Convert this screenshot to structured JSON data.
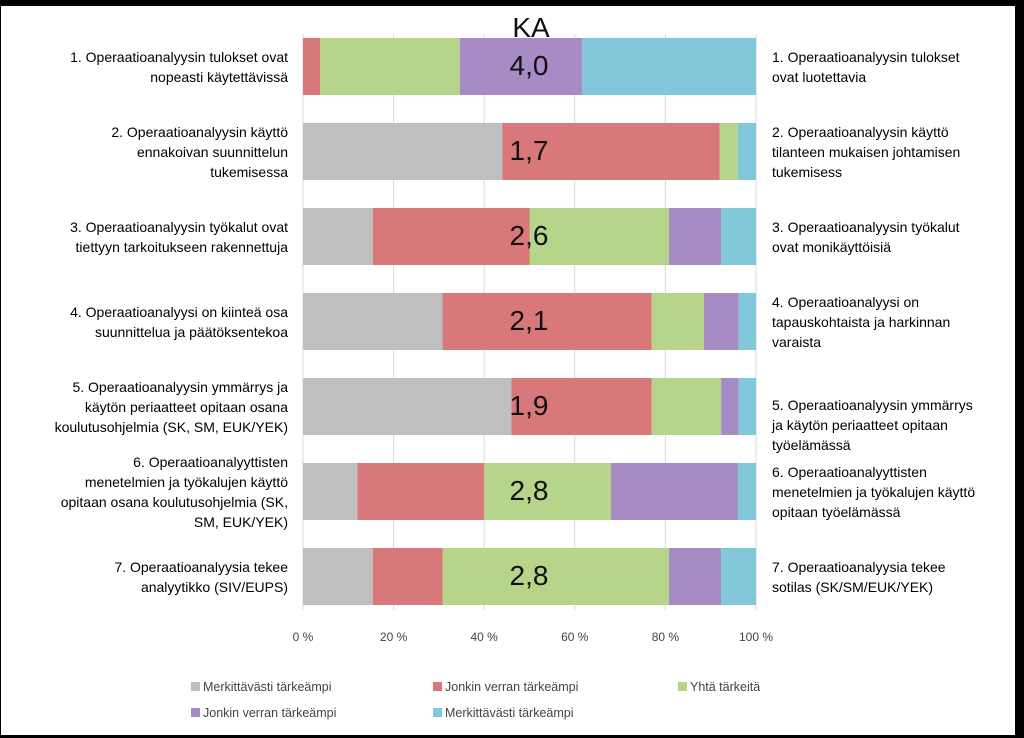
{
  "chart_data": {
    "type": "bar",
    "orientation": "horizontal-stacked-100",
    "title": "KA",
    "categories_left": [
      "1. Operaatioanalyysin tulokset ovat\nnopeasti käytettävissä",
      "2. Operaatioanalyysin käyttö\nennakoivan suunnittelun\ntukemisessa",
      "3. Operaatioanalyysin työkalut ovat\ntiettyyn tarkoitukseen rakennettuja",
      "4. Operaatioanalyysi on kiinteä osa\nsuunnittelua ja päätöksentekoa",
      "5. Operaatioanalyysin ymmärrys ja\nkäytön periaatteet opitaan osana\nkoulutusohjelmia (SK, SM, EUK/YEK)",
      "6. Operaatioanalyyttisten\nmenetelmien ja työkalujen käyttö\nopitaan osana koulutusohjelmia (SK,\nSM, EUK/YEK)",
      "7. Operaatioanalyysia tekee\nanalyytikko (SIV/EUPS)"
    ],
    "categories_right": [
      "1. Operaatioanalyysin tulokset\novat luotettavia",
      "2. Operaatioanalyysin käyttö\ntilanteen mukaisen johtamisen\ntukemisess",
      "3. Operaatioanalyysin työkalut\novat monikäyttöisiä",
      "4. Operaatioanalyysi on\ntapauskohtaista ja harkinnan\nvaraista",
      "5. Operaatioanalyysin ymmärrys\nja käytön periaatteet opitaan\ntyöelämässä",
      "6. Operaatioanalyyttisten\nmenetelmien ja työkalujen käyttö\nopitaan työelämässä",
      "7. Operaatioanalyysia tekee\nsotilas (SK/SM/EUK/YEK)"
    ],
    "averages": [
      "4,0",
      "1,7",
      "2,6",
      "2,1",
      "1,9",
      "2,8",
      "2,8"
    ],
    "series": [
      {
        "name": "Merkittävästi tärkeämpi",
        "color": "#BFBFBF",
        "values": [
          0.0,
          44.0,
          15.4,
          30.8,
          46.0,
          12.0,
          15.4
        ]
      },
      {
        "name": "Jonkin verran tärkeämpi",
        "color": "#D9787A",
        "values": [
          3.8,
          48.0,
          34.6,
          46.2,
          31.0,
          28.0,
          15.4
        ]
      },
      {
        "name": "Yhtä tärkeitä",
        "color": "#B7D58A",
        "values": [
          30.8,
          4.0,
          30.8,
          11.5,
          15.3,
          28.0,
          50.0
        ]
      },
      {
        "name": "Jonkin verran tärkeämpi",
        "color": "#A68BC5",
        "values": [
          27.0,
          0.0,
          11.5,
          7.7,
          3.9,
          28.0,
          11.5
        ]
      },
      {
        "name": "Merkittävästi tärkeämpi",
        "color": "#83C7DA",
        "values": [
          38.4,
          4.0,
          7.7,
          3.8,
          3.8,
          4.0,
          7.7
        ]
      }
    ],
    "x_ticks": [
      "0 %",
      "20 %",
      "40 %",
      "60 %",
      "80 %",
      "100 %"
    ],
    "xlim": [
      0,
      100
    ],
    "grid": true,
    "legend": "bottom"
  }
}
